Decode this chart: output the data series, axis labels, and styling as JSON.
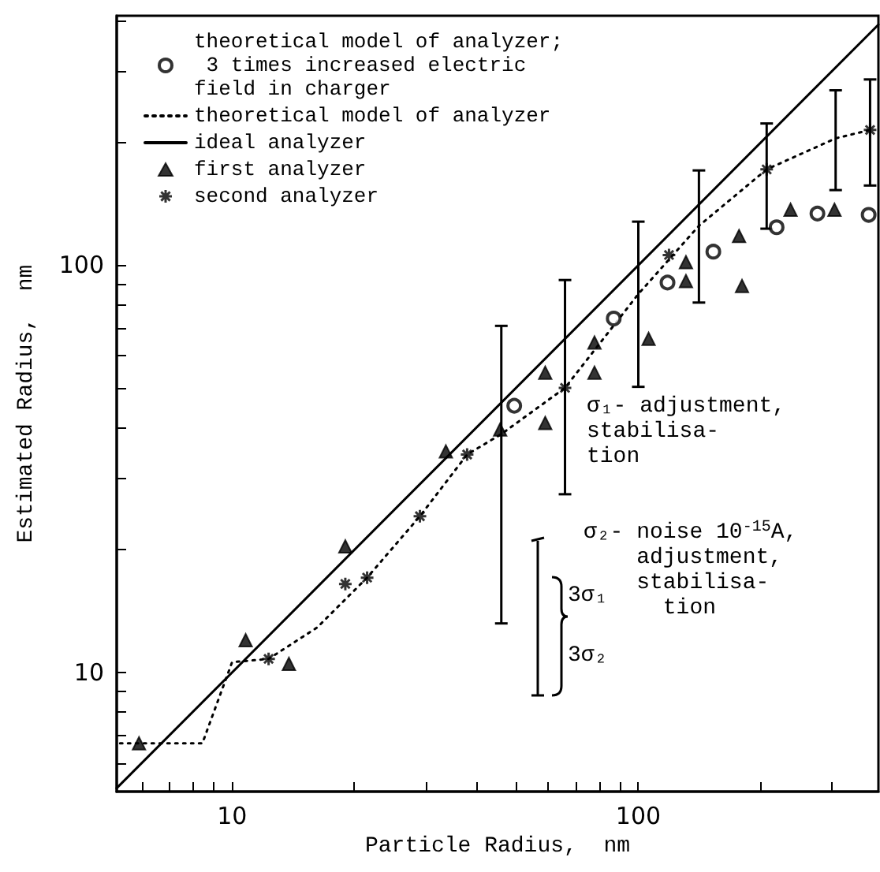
{
  "chart_data": {
    "type": "scatter",
    "xlabel": "Particle Radius,  nm",
    "ylabel": "Estimated Radius,  nm",
    "log": "xy",
    "grid": false,
    "legend": "top left",
    "xlim": [
      5.2,
      390
    ],
    "ylim": [
      5.1,
      410
    ],
    "xticks": [
      {
        "value": 6,
        "label": null
      },
      {
        "value": 7,
        "label": null
      },
      {
        "value": 8,
        "label": null
      },
      {
        "value": 9,
        "label": null
      },
      10,
      {
        "value": 20,
        "label": null
      },
      {
        "value": 30,
        "label": null
      },
      {
        "value": 40,
        "label": null
      },
      {
        "value": 50,
        "label": null
      },
      {
        "value": 60,
        "label": null
      },
      {
        "value": 70,
        "label": null
      },
      {
        "value": 80,
        "label": null
      },
      {
        "value": 90,
        "label": null
      },
      100,
      {
        "value": 200,
        "label": null
      },
      {
        "value": 300,
        "label": null
      }
    ],
    "yticks": [
      {
        "value": 6,
        "label": null
      },
      {
        "value": 7,
        "label": null
      },
      {
        "value": 8,
        "label": null
      },
      {
        "value": 9,
        "label": null
      },
      10,
      {
        "value": 20,
        "label": null
      },
      {
        "value": 30,
        "label": null
      },
      {
        "value": 40,
        "label": null
      },
      {
        "value": 50,
        "label": null
      },
      {
        "value": 60,
        "label": null
      },
      {
        "value": 70,
        "label": null
      },
      {
        "value": 80,
        "label": null
      },
      {
        "value": 90,
        "label": null
      },
      100,
      {
        "value": 200,
        "label": null
      },
      {
        "value": 300,
        "label": null
      },
      {
        "value": 400,
        "label": null
      }
    ],
    "series": [
      {
        "name": "theoretical model of analyzer; 3 times increased electric field in charger",
        "marker": "circle",
        "color": "#000000",
        "x": [
          49.5,
          87,
          118,
          153,
          219,
          276,
          369
        ],
        "values": [
          45.2,
          74,
          90.7,
          108,
          124,
          134,
          133
        ]
      },
      {
        "name": "theoretical model of analyzer",
        "type": "line",
        "marker": "none",
        "line_style": "dotted",
        "color": "#000000",
        "x": [
          5.3,
          8.45,
          10,
          12.3,
          16.2,
          21.5,
          29,
          37.9,
          46,
          66,
          100,
          141,
          207,
          306,
          372
        ],
        "values": [
          6.7,
          6.7,
          10.6,
          10.8,
          12.9,
          17.1,
          24.2,
          34.3,
          38.5,
          50,
          85,
          125,
          172,
          205,
          215
        ],
        "errors": [
          null,
          null,
          null,
          null,
          null,
          null,
          null,
          null,
          [
            13.2,
            71
          ],
          [
            27.4,
            92
          ],
          [
            50.3,
            128
          ],
          [
            81,
            171
          ],
          [
            123,
            223
          ],
          [
            153,
            269
          ],
          [
            157,
            286
          ]
        ]
      },
      {
        "name": "ideal analyzer",
        "type": "line",
        "marker": "none",
        "line_style": "solid",
        "color": "#000000",
        "x": [
          5.2,
          390
        ],
        "values": [
          5.2,
          390
        ]
      },
      {
        "name": "first analyzer",
        "marker": "triangle",
        "color": "#000000",
        "x": [
          5.9,
          10.8,
          13.8,
          19,
          33.6,
          45.7,
          59,
          59,
          78,
          78,
          106,
          131,
          131,
          180,
          177,
          237,
          304
        ],
        "values": [
          6.7,
          12,
          10.5,
          20.4,
          34.9,
          39.5,
          41,
          54.5,
          64.6,
          54.5,
          66,
          101.8,
          91.5,
          89,
          118,
          137,
          137
        ]
      },
      {
        "name": "second analyzer",
        "marker": "cross",
        "color": "#000000",
        "x": [
          12.3,
          19,
          21.5,
          29,
          37.9,
          66,
          119,
          207,
          372
        ],
        "values": [
          10.8,
          16.5,
          17.1,
          24.2,
          34.3,
          50,
          106,
          172,
          215
        ]
      }
    ],
    "annotations": [
      "σ₁- adjustment,\nstabilisa-\ntion",
      "σ₂- noise 10$^{-15}$A,\n    adjustment,\n    stabilisa-\n      tion",
      "3σ₁",
      "3σ₂"
    ]
  }
}
